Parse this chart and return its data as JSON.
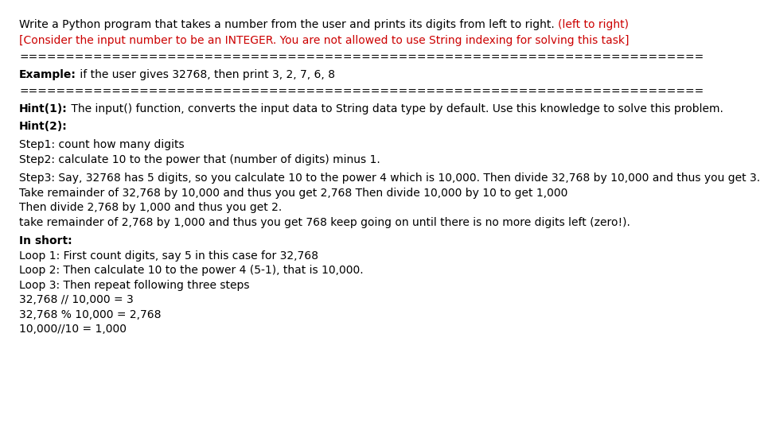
{
  "bg_color": "#ffffff",
  "line1_normal": "Write a Python program that takes a number from the user and prints its digits from left to right. ",
  "line1_red": "(left to right)",
  "line2_red": "[Consider the input number to be an INTEGER. You are not allowed to use String indexing for solving this task]",
  "separator": "==========================================================================",
  "example_bold": "Example:",
  "example_normal": " if the user gives 32768, then print 3, 2, 7, 6, 8",
  "hint1_bold": "Hint(1):",
  "hint1_normal": " The input() function, converts the input data to String data type by default. Use this knowledge to solve this problem.",
  "hint2_bold": "Hint(2):",
  "step1": "Step1: count how many digits",
  "step2": "Step2: calculate 10 to the power that (number of digits) minus 1.",
  "step3_line1": "Step3: Say, 32768 has 5 digits, so you calculate 10 to the power 4 which is 10,000. Then divide 32,768 by 10,000 and thus you get 3.",
  "step3_line2": "Take remainder of 32,768 by 10,000 and thus you get 2,768 Then divide 10,000 by 10 to get 1,000",
  "step3_line3": "Then divide 2,768 by 1,000 and thus you get 2.",
  "step3_line4": "take remainder of 2,768 by 1,000 and thus you get 768 keep going on until there is no more digits left (zero!).",
  "inshort_bold": "In short:",
  "loop1": "Loop 1: First count digits, say 5 in this case for 32,768",
  "loop2": "Loop 2: Then calculate 10 to the power 4 (5-1), that is 10,000.",
  "loop3": "Loop 3: Then repeat following three steps",
  "calc1": "32,768 // 10,000 = 3",
  "calc2": "32,768 % 10,000 = 2,768",
  "calc3": "10,000//10 = 1,000",
  "font_size": 10.0,
  "font_family": "DejaVu Sans",
  "red_color": "#cc0000",
  "black_color": "#000000"
}
